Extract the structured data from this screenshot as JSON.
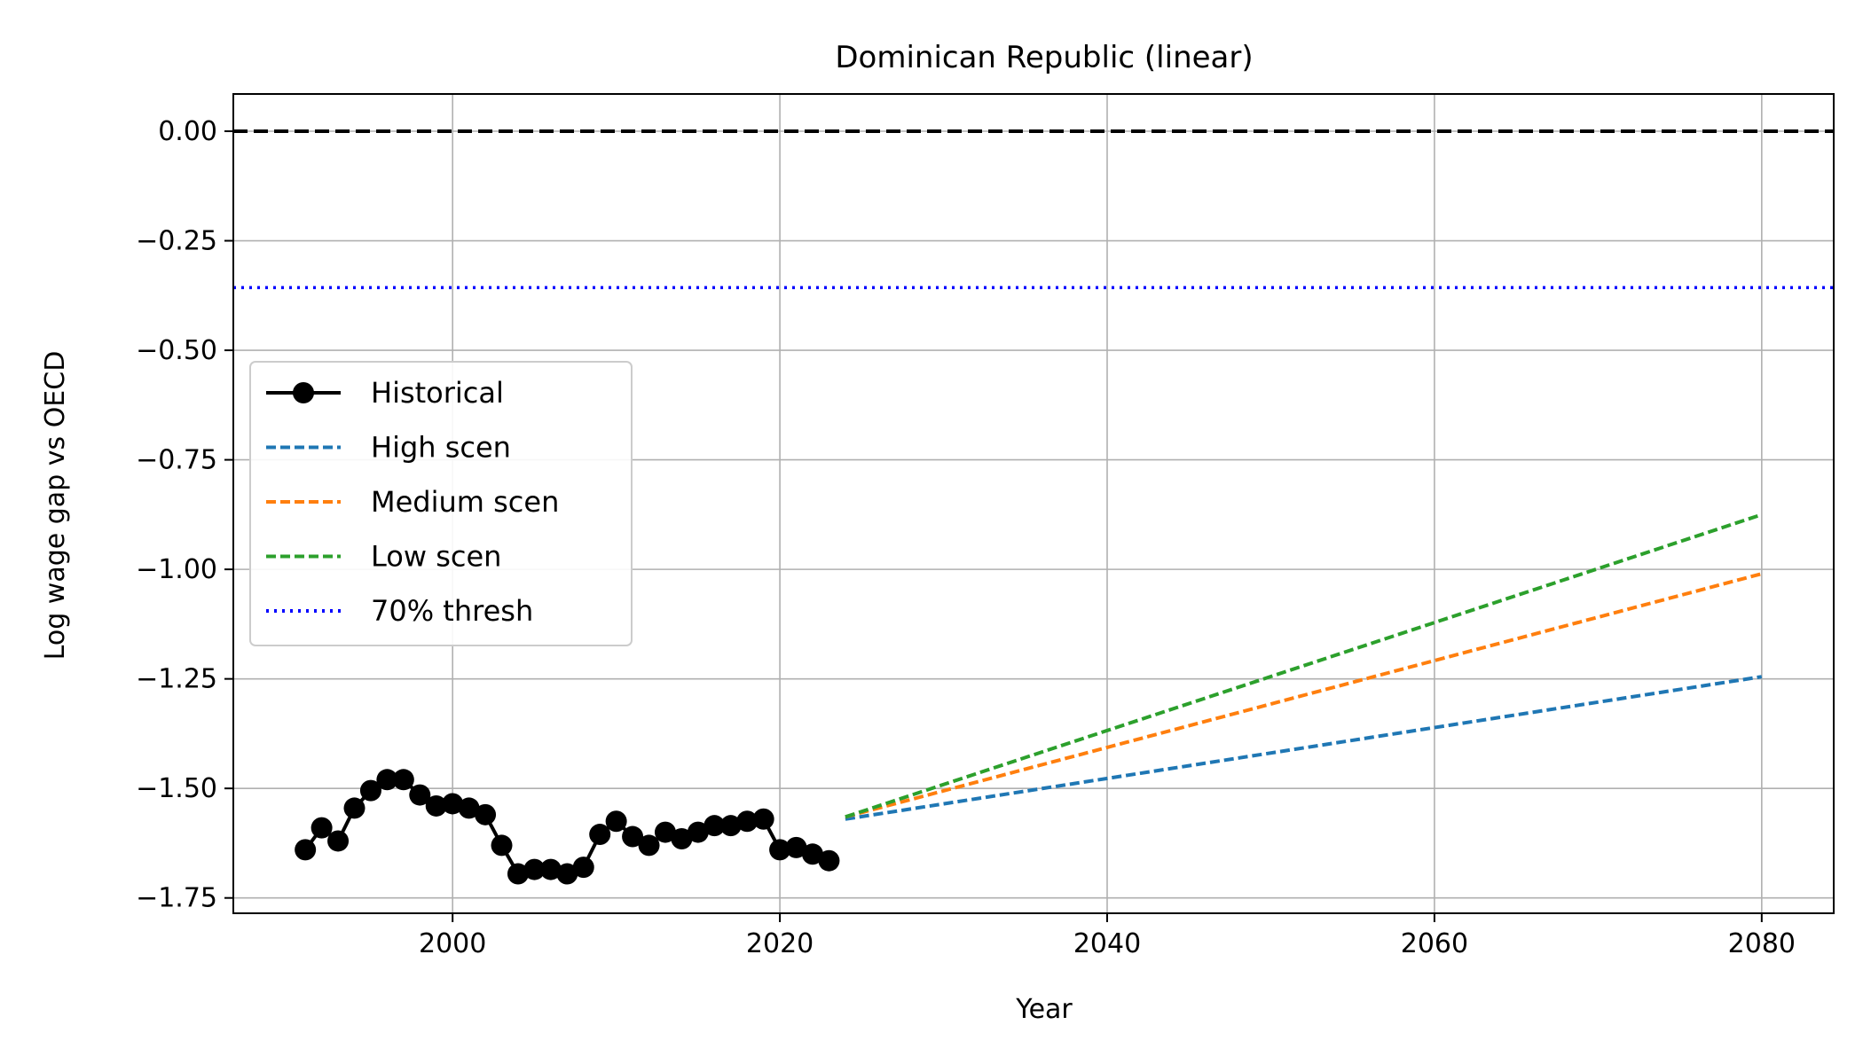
{
  "chart_data": {
    "type": "line",
    "title": "Dominican Republic (linear)",
    "xlabel": "Year",
    "ylabel": "Log wage gap vs OECD",
    "xlim": [
      1986.6,
      2084.4
    ],
    "ylim": [
      -1.785,
      0.085
    ],
    "xticks": [
      2000,
      2020,
      2040,
      2060,
      2080
    ],
    "xtick_labels": [
      "2000",
      "2020",
      "2040",
      "2060",
      "2080"
    ],
    "yticks": [
      0.0,
      -0.25,
      -0.5,
      -0.75,
      -1.0,
      -1.25,
      -1.5,
      -1.75
    ],
    "ytick_labels": [
      "0.00",
      "−0.25",
      "−0.50",
      "−0.75",
      "−1.00",
      "−1.25",
      "−1.50",
      "−1.75"
    ],
    "grid": true,
    "legend_position": "center-left",
    "series": [
      {
        "name": "Historical",
        "style": "solid-markers",
        "color": "#000000",
        "x": [
          1991,
          1992,
          1993,
          1994,
          1995,
          1996,
          1997,
          1998,
          1999,
          2000,
          2001,
          2002,
          2003,
          2004,
          2005,
          2006,
          2007,
          2008,
          2009,
          2010,
          2011,
          2012,
          2013,
          2014,
          2015,
          2016,
          2017,
          2018,
          2019,
          2020,
          2021,
          2022,
          2023
        ],
        "y": [
          -1.64,
          -1.59,
          -1.62,
          -1.545,
          -1.505,
          -1.48,
          -1.48,
          -1.515,
          -1.54,
          -1.535,
          -1.545,
          -1.56,
          -1.63,
          -1.695,
          -1.685,
          -1.685,
          -1.695,
          -1.68,
          -1.605,
          -1.575,
          -1.61,
          -1.63,
          -1.6,
          -1.615,
          -1.6,
          -1.585,
          -1.585,
          -1.575,
          -1.57,
          -1.64,
          -1.635,
          -1.65,
          -1.665
        ]
      },
      {
        "name": "High scen",
        "style": "dashed",
        "color": "#1f77b4",
        "x": [
          2024,
          2080
        ],
        "y": [
          -1.57,
          -1.245
        ]
      },
      {
        "name": "Medium scen",
        "style": "dashed",
        "color": "#ff7f0e",
        "x": [
          2024,
          2080
        ],
        "y": [
          -1.565,
          -1.01
        ]
      },
      {
        "name": "Low scen",
        "style": "dashed",
        "color": "#2ca02c",
        "x": [
          2024,
          2080
        ],
        "y": [
          -1.565,
          -0.875
        ]
      }
    ],
    "reference_lines": [
      {
        "name": "",
        "y": 0.0,
        "style": "dashed",
        "color": "#000000"
      },
      {
        "name": "70% thresh",
        "y": -0.357,
        "style": "dotted",
        "color": "#0000ff"
      }
    ],
    "legend": [
      "Historical",
      "High scen",
      "Medium scen",
      "Low scen",
      "70% thresh"
    ]
  }
}
